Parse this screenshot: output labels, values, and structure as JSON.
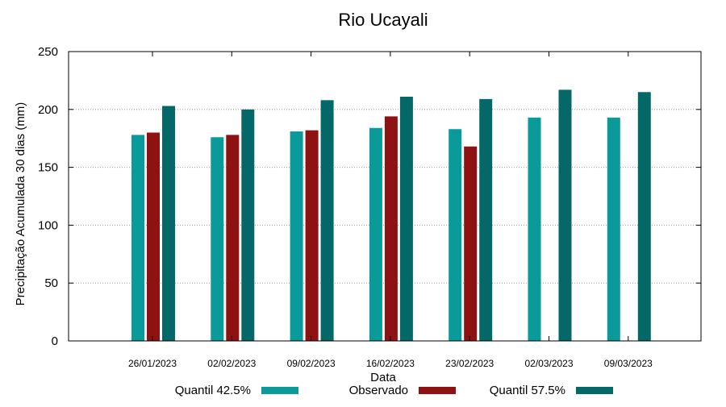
{
  "chart_data": {
    "type": "bar",
    "title": "Rio Ucayali",
    "xlabel": "Data",
    "ylabel": "Precipitação Acumulada 30 dias (mm)",
    "ylim": [
      0,
      250
    ],
    "yticks": [
      "0",
      "50",
      "100",
      "150",
      "200",
      "250"
    ],
    "grid": "horizontal dotted",
    "legend_position": "bottom",
    "categories": [
      "26/01/2023",
      "02/02/2023",
      "09/02/2023",
      "16/02/2023",
      "23/02/2023",
      "02/03/2023",
      "09/03/2023"
    ],
    "series": [
      {
        "name": "Quantil 42.5%",
        "color": "#0a9a9a",
        "values": [
          178,
          176,
          181,
          184,
          183,
          193,
          193
        ]
      },
      {
        "name": "Observado",
        "color": "#8e1212",
        "values": [
          180,
          178,
          182,
          194,
          168,
          null,
          null
        ]
      },
      {
        "name": "Quantil 57.5%",
        "color": "#046868",
        "values": [
          203,
          200,
          208,
          211,
          209,
          217,
          215
        ]
      }
    ]
  }
}
